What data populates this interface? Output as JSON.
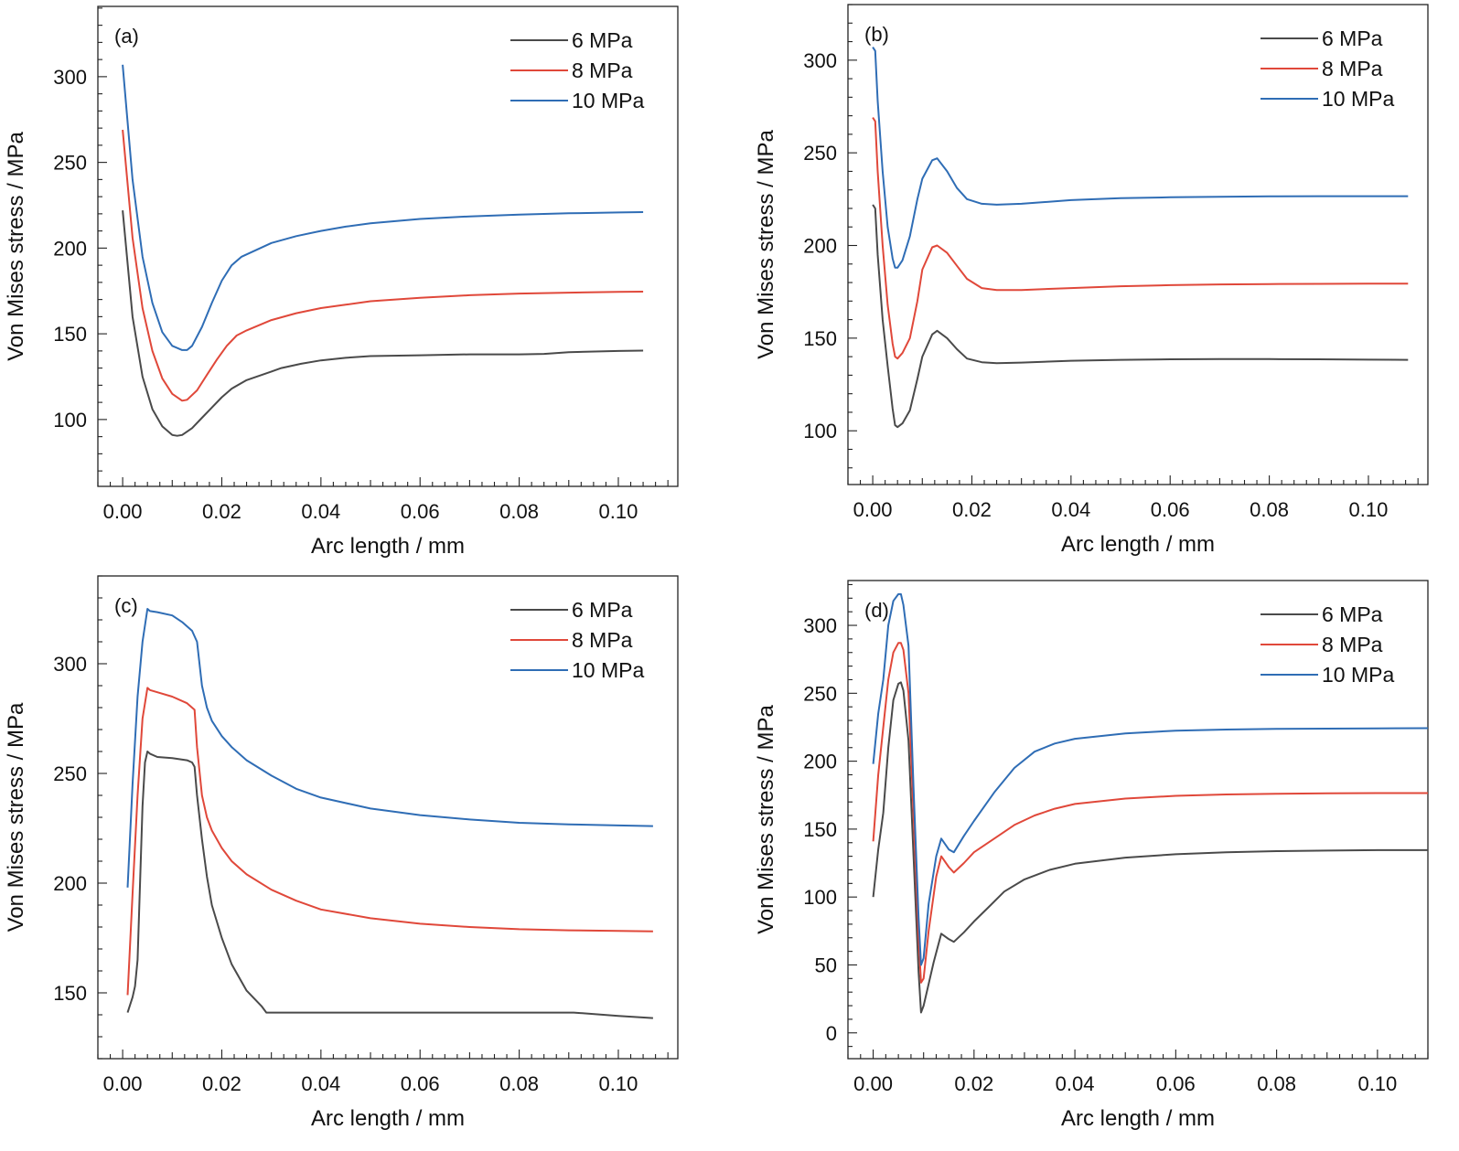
{
  "chart_data": [
    {
      "type": "line",
      "panel_label": "(a)",
      "xlabel": "Arc length / mm",
      "ylabel": "Von Mises stress / MPa",
      "xlim": [
        -0.005,
        0.112
      ],
      "ylim": [
        61,
        341
      ],
      "xticks": [
        0.0,
        0.02,
        0.04,
        0.06,
        0.08,
        0.1
      ],
      "xtick_labels": [
        "0.00",
        "0.02",
        "0.04",
        "0.06",
        "0.08",
        "0.10"
      ],
      "yticks": [
        100,
        150,
        200,
        250,
        300
      ],
      "ytick_labels": [
        "100",
        "150",
        "200",
        "250",
        "300"
      ],
      "legend_position": "top-right",
      "series": [
        {
          "name": "6 MPa",
          "color": "#4a4a4a",
          "x": [
            0.0,
            0.002,
            0.004,
            0.006,
            0.008,
            0.01,
            0.011,
            0.012,
            0.014,
            0.016,
            0.018,
            0.02,
            0.022,
            0.025,
            0.03,
            0.032,
            0.036,
            0.04,
            0.045,
            0.05,
            0.06,
            0.07,
            0.08,
            0.085,
            0.09,
            0.1,
            0.105
          ],
          "y": [
            222,
            160,
            125,
            106,
            96,
            91,
            90.5,
            91,
            95,
            101,
            107,
            113,
            118,
            123,
            128,
            130,
            132.5,
            134.5,
            136,
            137,
            137.5,
            138,
            138,
            138.3,
            139.3,
            140,
            140.2
          ]
        },
        {
          "name": "8 MPa",
          "color": "#e0483a",
          "x": [
            0.0,
            0.002,
            0.004,
            0.006,
            0.008,
            0.01,
            0.012,
            0.013,
            0.015,
            0.017,
            0.019,
            0.021,
            0.023,
            0.025,
            0.03,
            0.035,
            0.04,
            0.045,
            0.05,
            0.06,
            0.07,
            0.08,
            0.09,
            0.1,
            0.105
          ],
          "y": [
            269,
            206,
            165,
            140,
            124,
            115,
            111,
            111.5,
            117,
            126,
            135,
            143,
            149,
            152,
            158,
            162,
            165,
            167,
            169,
            171,
            172.5,
            173.5,
            174,
            174.5,
            174.6
          ]
        },
        {
          "name": "10 MPa",
          "color": "#2f6db5",
          "x": [
            0.0,
            0.002,
            0.004,
            0.006,
            0.008,
            0.01,
            0.012,
            0.013,
            0.014,
            0.016,
            0.018,
            0.02,
            0.022,
            0.024,
            0.027,
            0.03,
            0.035,
            0.04,
            0.045,
            0.05,
            0.06,
            0.07,
            0.08,
            0.09,
            0.1,
            0.105
          ],
          "y": [
            307,
            240,
            195,
            168,
            151,
            143,
            140.5,
            140.5,
            143,
            154,
            168,
            181,
            190,
            195,
            199,
            203,
            207,
            210,
            212.5,
            214.5,
            217,
            218.5,
            219.5,
            220.3,
            220.8,
            221
          ]
        }
      ]
    },
    {
      "type": "line",
      "panel_label": "(b)",
      "xlabel": "Arc length / mm",
      "ylabel": "Von Mises stress / MPa",
      "xlim": [
        -0.005,
        0.112
      ],
      "ylim": [
        71,
        330
      ],
      "xticks": [
        0.0,
        0.02,
        0.04,
        0.06,
        0.08,
        0.1
      ],
      "xtick_labels": [
        "0.00",
        "0.02",
        "0.04",
        "0.06",
        "0.08",
        "0.10"
      ],
      "yticks": [
        100,
        150,
        200,
        250,
        300
      ],
      "ytick_labels": [
        "100",
        "150",
        "200",
        "250",
        "300"
      ],
      "legend_position": "top-right",
      "series": [
        {
          "name": "6 MPa",
          "color": "#4a4a4a",
          "x": [
            0.0,
            0.0005,
            0.001,
            0.002,
            0.003,
            0.004,
            0.0045,
            0.005,
            0.006,
            0.0075,
            0.009,
            0.01,
            0.012,
            0.013,
            0.015,
            0.017,
            0.019,
            0.022,
            0.025,
            0.03,
            0.04,
            0.05,
            0.06,
            0.07,
            0.08,
            0.09,
            0.1,
            0.108
          ],
          "y": [
            222,
            220,
            195,
            160,
            135,
            112,
            103,
            102,
            104,
            111,
            128,
            140,
            152,
            154,
            150,
            144,
            139,
            137,
            136.5,
            136.8,
            137.8,
            138.3,
            138.6,
            138.7,
            138.7,
            138.6,
            138.4,
            138.3
          ]
        },
        {
          "name": "8 MPa",
          "color": "#e0483a",
          "x": [
            0.0,
            0.0005,
            0.001,
            0.002,
            0.003,
            0.004,
            0.0045,
            0.005,
            0.006,
            0.0075,
            0.009,
            0.01,
            0.012,
            0.013,
            0.015,
            0.017,
            0.019,
            0.022,
            0.025,
            0.03,
            0.04,
            0.05,
            0.06,
            0.07,
            0.08,
            0.09,
            0.1,
            0.108
          ],
          "y": [
            269,
            267,
            240,
            200,
            168,
            147,
            140,
            139,
            142,
            150,
            170,
            187,
            199,
            200,
            196,
            189,
            182,
            177,
            176,
            176,
            177,
            178,
            178.6,
            179,
            179.2,
            179.3,
            179.4,
            179.4
          ]
        },
        {
          "name": "10 MPa",
          "color": "#2f6db5",
          "x": [
            0.0,
            0.0005,
            0.001,
            0.002,
            0.003,
            0.004,
            0.0045,
            0.005,
            0.006,
            0.0075,
            0.009,
            0.01,
            0.012,
            0.013,
            0.015,
            0.017,
            0.019,
            0.022,
            0.025,
            0.03,
            0.04,
            0.05,
            0.06,
            0.07,
            0.08,
            0.09,
            0.1,
            0.108
          ],
          "y": [
            307,
            305,
            278,
            240,
            210,
            193,
            188,
            188,
            192,
            205,
            225,
            236,
            246,
            247,
            240,
            231,
            225,
            222.5,
            222,
            222.5,
            224.5,
            225.5,
            226,
            226.3,
            226.5,
            226.6,
            226.6,
            226.6
          ]
        }
      ]
    },
    {
      "type": "line",
      "panel_label": "(c)",
      "xlabel": "Arc length / mm",
      "ylabel": "Von Mises stress / MPa",
      "xlim": [
        -0.005,
        0.112
      ],
      "ylim": [
        120,
        340
      ],
      "xticks": [
        0.0,
        0.02,
        0.04,
        0.06,
        0.08,
        0.1
      ],
      "xtick_labels": [
        "0.00",
        "0.02",
        "0.04",
        "0.06",
        "0.08",
        "0.10"
      ],
      "yticks": [
        150,
        200,
        250,
        300
      ],
      "ytick_labels": [
        "150",
        "200",
        "250",
        "300"
      ],
      "legend_position": "top-right",
      "series": [
        {
          "name": "6 MPa",
          "color": "#4a4a4a",
          "x": [
            0.001,
            0.002,
            0.0025,
            0.003,
            0.0035,
            0.004,
            0.0045,
            0.005,
            0.0055,
            0.007,
            0.01,
            0.013,
            0.014,
            0.0145,
            0.015,
            0.016,
            0.017,
            0.018,
            0.02,
            0.022,
            0.025,
            0.028,
            0.029,
            0.04,
            0.06,
            0.08,
            0.091,
            0.1,
            0.107
          ],
          "y": [
            141,
            148,
            153,
            165,
            200,
            235,
            255,
            260,
            259,
            257.5,
            257,
            256,
            255,
            253,
            240,
            220,
            203,
            190,
            175,
            163,
            151,
            144,
            141,
            141,
            141,
            141,
            141,
            139.5,
            138.5
          ]
        },
        {
          "name": "8 MPa",
          "color": "#e0483a",
          "x": [
            0.001,
            0.002,
            0.003,
            0.004,
            0.005,
            0.0055,
            0.007,
            0.01,
            0.013,
            0.0145,
            0.015,
            0.016,
            0.017,
            0.018,
            0.02,
            0.022,
            0.025,
            0.03,
            0.035,
            0.04,
            0.05,
            0.06,
            0.07,
            0.08,
            0.09,
            0.1,
            0.107
          ],
          "y": [
            149,
            195,
            240,
            275,
            289,
            288,
            287,
            285,
            282,
            279,
            262,
            240,
            230,
            224,
            216,
            210,
            204,
            197,
            192,
            188,
            184,
            181.5,
            180,
            179,
            178.5,
            178.2,
            178
          ]
        },
        {
          "name": "10 MPa",
          "color": "#2f6db5",
          "x": [
            0.001,
            0.002,
            0.003,
            0.004,
            0.005,
            0.0055,
            0.007,
            0.01,
            0.012,
            0.014,
            0.015,
            0.016,
            0.017,
            0.018,
            0.02,
            0.022,
            0.025,
            0.03,
            0.035,
            0.04,
            0.05,
            0.06,
            0.07,
            0.08,
            0.09,
            0.1,
            0.107
          ],
          "y": [
            198,
            245,
            285,
            310,
            325,
            324,
            323.5,
            322,
            319,
            315,
            310,
            290,
            280,
            274,
            267,
            262,
            256,
            249,
            243,
            239,
            234,
            231,
            229,
            227.5,
            226.8,
            226.3,
            226
          ]
        }
      ]
    },
    {
      "type": "line",
      "panel_label": "(d)",
      "xlabel": "Arc length / mm",
      "ylabel": "Von Mises stress / MPa",
      "xlim": [
        -0.005,
        0.11
      ],
      "ylim": [
        -19,
        333
      ],
      "xticks": [
        0.0,
        0.02,
        0.04,
        0.06,
        0.08,
        0.1
      ],
      "xtick_labels": [
        "0.00",
        "0.02",
        "0.04",
        "0.06",
        "0.08",
        "0.10"
      ],
      "yticks": [
        0,
        50,
        100,
        150,
        200,
        250,
        300
      ],
      "ytick_labels": [
        "0",
        "50",
        "100",
        "150",
        "200",
        "250",
        "300"
      ],
      "legend_position": "top-right",
      "series": [
        {
          "name": "6 MPa",
          "color": "#4a4a4a",
          "x": [
            0.0,
            0.001,
            0.002,
            0.003,
            0.004,
            0.005,
            0.0055,
            0.006,
            0.007,
            0.008,
            0.009,
            0.0095,
            0.01,
            0.012,
            0.0135,
            0.015,
            0.016,
            0.018,
            0.02,
            0.023,
            0.026,
            0.03,
            0.035,
            0.04,
            0.05,
            0.06,
            0.07,
            0.08,
            0.09,
            0.1,
            0.11
          ],
          "y": [
            100,
            135,
            162,
            210,
            245,
            257,
            258,
            252,
            215,
            130,
            45,
            15,
            20,
            52,
            73,
            69,
            67,
            74,
            82,
            93,
            104,
            113,
            120,
            124.5,
            129,
            131.5,
            133,
            133.8,
            134.2,
            134.5,
            134.5
          ]
        },
        {
          "name": "8 MPa",
          "color": "#e0483a",
          "x": [
            0.0,
            0.001,
            0.002,
            0.003,
            0.004,
            0.005,
            0.0055,
            0.006,
            0.007,
            0.008,
            0.009,
            0.0095,
            0.01,
            0.011,
            0.0125,
            0.0135,
            0.015,
            0.016,
            0.018,
            0.02,
            0.024,
            0.028,
            0.032,
            0.036,
            0.04,
            0.05,
            0.06,
            0.07,
            0.08,
            0.09,
            0.1,
            0.11
          ],
          "y": [
            141,
            190,
            225,
            260,
            280,
            287,
            287,
            282,
            250,
            160,
            70,
            37,
            40,
            75,
            115,
            130,
            122,
            118,
            125,
            133,
            143,
            153,
            160,
            165,
            168.5,
            172.5,
            174.5,
            175.5,
            176,
            176.3,
            176.5,
            176.5
          ]
        },
        {
          "name": "10 MPa",
          "color": "#2f6db5",
          "x": [
            0.0,
            0.001,
            0.002,
            0.003,
            0.004,
            0.005,
            0.0055,
            0.006,
            0.007,
            0.008,
            0.009,
            0.0095,
            0.01,
            0.011,
            0.0125,
            0.0135,
            0.015,
            0.016,
            0.018,
            0.02,
            0.024,
            0.028,
            0.032,
            0.036,
            0.04,
            0.05,
            0.06,
            0.07,
            0.08,
            0.09,
            0.1,
            0.11
          ],
          "y": [
            198,
            235,
            260,
            300,
            318,
            323,
            323,
            315,
            285,
            180,
            85,
            50,
            55,
            95,
            130,
            143,
            135,
            133,
            145,
            156,
            177,
            195,
            207,
            213,
            216.5,
            220.5,
            222.5,
            223.3,
            223.8,
            224,
            224.2,
            224.3
          ]
        }
      ]
    }
  ]
}
